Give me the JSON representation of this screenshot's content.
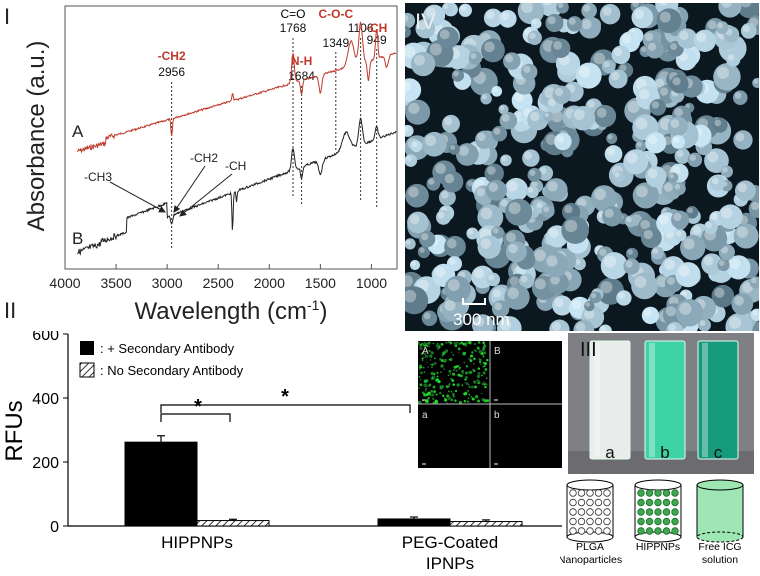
{
  "panels": {
    "ftir": {
      "label": "I",
      "chart_data": {
        "type": "line",
        "xlabel": "Wavelength (cm-1)",
        "ylabel": "Absorbance (a.u.)",
        "xlim": [
          4000,
          750
        ],
        "x_reversed": true,
        "x_ticks": [
          "4000",
          "3500",
          "3000",
          "2500",
          "2000",
          "1500",
          "1000"
        ],
        "series": [
          {
            "name": "A",
            "color": "#c0392b"
          },
          {
            "name": "B",
            "color": "#222222"
          }
        ],
        "peaks": [
          {
            "x": 2956,
            "group": "-CH2",
            "value": "2956",
            "color": "#c0392b"
          },
          {
            "x": 1768,
            "group": "C=O",
            "value": "1768",
            "color": "#000000"
          },
          {
            "x": 1684,
            "group": "N-H",
            "value": "1684",
            "color": "#c0392b"
          },
          {
            "x": 1349,
            "group": "C-O-C",
            "value": "1349",
            "color": "#c0392b"
          },
          {
            "x": 1106,
            "group": "",
            "value": "1106",
            "color": "#000000"
          },
          {
            "x": 949,
            "group": "-CH",
            "value": "949",
            "color": "#c0392b"
          }
        ],
        "annotations": [
          "-CH3",
          "-CH2",
          "-CH"
        ]
      }
    },
    "rfu": {
      "label": "II",
      "chart_data": {
        "type": "bar",
        "categories": [
          "HIPPNPs",
          "PEG-Coated IPNPs"
        ],
        "series": [
          {
            "name": ": + Secondary Antibody",
            "values": [
              262,
              22
            ],
            "errors": [
              20,
              6
            ],
            "fill": "#000000"
          },
          {
            "name": ": No Secondary Antibody",
            "values": [
              17,
              14
            ],
            "errors": [
              4,
              5
            ],
            "fill": "hatch"
          }
        ],
        "ylabel": "RFUs",
        "ylim": [
          0,
          600
        ],
        "y_ticks": [
          "0",
          "200",
          "400",
          "600"
        ],
        "significance": [
          "*",
          "*"
        ]
      },
      "fluorescence_grid": [
        "A",
        "B",
        "a",
        "b"
      ]
    },
    "photo": {
      "label": "III",
      "vials": [
        "a",
        "b",
        "c"
      ],
      "captions": [
        "PLGA Nanoparticles",
        "HIPPNPs",
        "Free ICG solution"
      ]
    },
    "sem": {
      "label": "IV",
      "scale_bar": "300 nm"
    }
  }
}
